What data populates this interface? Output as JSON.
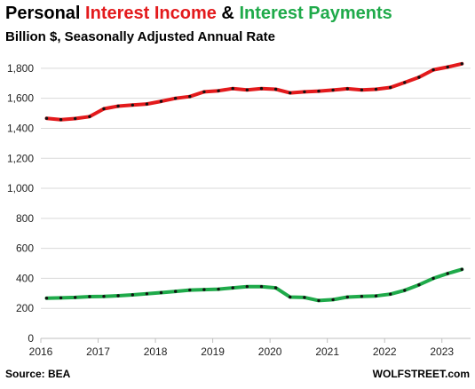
{
  "title": {
    "part1": "Personal ",
    "part2": "Interest Income",
    "part3": " & ",
    "part4": "Interest Payments",
    "color_income": "#e31a1c",
    "color_payments": "#1faa4a"
  },
  "subtitle": "Billion $, Seasonally Adjusted Annual Rate",
  "source": "Source: BEA",
  "brand": "WOLFSTREET.com",
  "chart_data": {
    "type": "line",
    "ylim": [
      0,
      1900
    ],
    "yticks": [
      0,
      200,
      400,
      600,
      800,
      1000,
      1200,
      1400,
      1600,
      1800
    ],
    "ytick_labels": [
      "0",
      "200",
      "400",
      "600",
      "800",
      "1,000",
      "1,200",
      "1,400",
      "1,600",
      "1,800"
    ],
    "xticks": [
      2016,
      2017,
      2018,
      2019,
      2020,
      2021,
      2022,
      2023
    ],
    "xtick_labels": [
      "2016",
      "2017",
      "2018",
      "2019",
      "2020",
      "2021",
      "2022",
      "2023"
    ],
    "xlim": [
      "2016-01",
      "2023-07"
    ],
    "grid": "horizontal",
    "x": [
      "2016-Q1",
      "2016-Q2",
      "2016-Q3",
      "2016-Q4",
      "2017-Q1",
      "2017-Q2",
      "2017-Q3",
      "2017-Q4",
      "2018-Q1",
      "2018-Q2",
      "2018-Q3",
      "2018-Q4",
      "2019-Q1",
      "2019-Q2",
      "2019-Q3",
      "2019-Q4",
      "2020-Q1",
      "2020-Q2",
      "2020-Q3",
      "2020-Q4",
      "2021-Q1",
      "2021-Q2",
      "2021-Q3",
      "2021-Q4",
      "2022-Q1",
      "2022-Q2",
      "2022-Q3",
      "2022-Q4",
      "2023-Q1",
      "2023-Q2"
    ],
    "series": [
      {
        "name": "Interest Income",
        "color": "#e31a1c",
        "values": [
          1467,
          1458,
          1465,
          1478,
          1530,
          1548,
          1555,
          1562,
          1580,
          1600,
          1612,
          1643,
          1650,
          1665,
          1656,
          1665,
          1660,
          1636,
          1643,
          1648,
          1655,
          1664,
          1656,
          1660,
          1672,
          1705,
          1740,
          1790,
          1808,
          1830
        ]
      },
      {
        "name": "Interest Payments",
        "color": "#1faa4a",
        "values": [
          268,
          270,
          273,
          278,
          280,
          284,
          290,
          297,
          305,
          313,
          322,
          325,
          328,
          337,
          345,
          345,
          337,
          275,
          273,
          252,
          258,
          275,
          280,
          283,
          295,
          320,
          357,
          400,
          432,
          460
        ]
      }
    ]
  }
}
